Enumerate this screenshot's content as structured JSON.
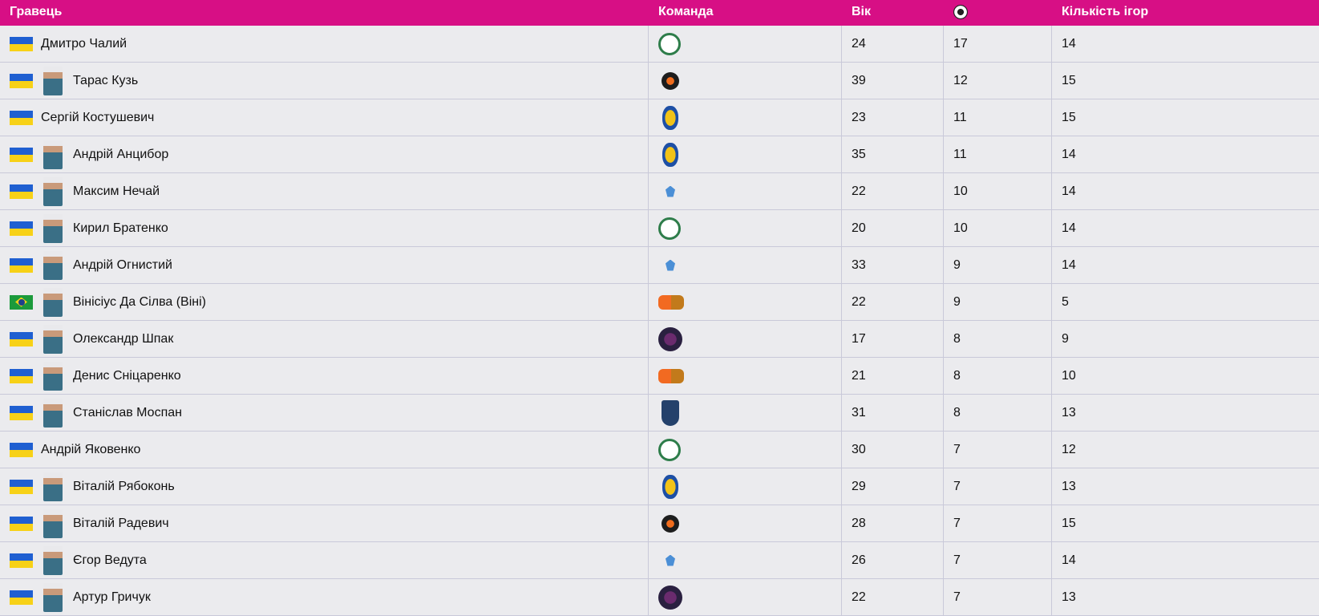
{
  "table": {
    "header": {
      "player": "Гравець",
      "team": "Команда",
      "age": "Вік",
      "games": "Кількість ігор"
    },
    "rows": [
      {
        "player": "Дмитро Чалий",
        "age": 24,
        "goals": 17,
        "games": 14
      },
      {
        "player": "Тарас Кузь",
        "age": 39,
        "goals": 12,
        "games": 15
      },
      {
        "player": "Сергій Костушевич",
        "age": 23,
        "goals": 11,
        "games": 15
      },
      {
        "player": "Андрій Анцибор",
        "age": 35,
        "goals": 11,
        "games": 14
      },
      {
        "player": "Максим Нечай",
        "age": 22,
        "goals": 10,
        "games": 14
      },
      {
        "player": "Кирил Братенко",
        "age": 20,
        "goals": 10,
        "games": 14
      },
      {
        "player": "Андрій Огнистий",
        "age": 33,
        "goals": 9,
        "games": 14
      },
      {
        "player": "Вінісіус Да Сілва (Віні)",
        "age": 22,
        "goals": 9,
        "games": 5
      },
      {
        "player": "Олександр Шпак",
        "age": 17,
        "goals": 8,
        "games": 9
      },
      {
        "player": "Денис Сніцаренко",
        "age": 21,
        "goals": 8,
        "games": 10
      },
      {
        "player": "Станіслав Моспан",
        "age": 31,
        "goals": 8,
        "games": 13
      },
      {
        "player": "Андрій Яковенко",
        "age": 30,
        "goals": 7,
        "games": 12
      },
      {
        "player": "Віталій Рябоконь",
        "age": 29,
        "goals": 7,
        "games": 13
      },
      {
        "player": "Віталій Радевич",
        "age": 28,
        "goals": 7,
        "games": 15
      },
      {
        "player": "Єгор Ведута",
        "age": 26,
        "goals": 7,
        "games": 14
      },
      {
        "player": "Артур Гричук",
        "age": 22,
        "goals": 7,
        "games": 13
      }
    ]
  }
}
